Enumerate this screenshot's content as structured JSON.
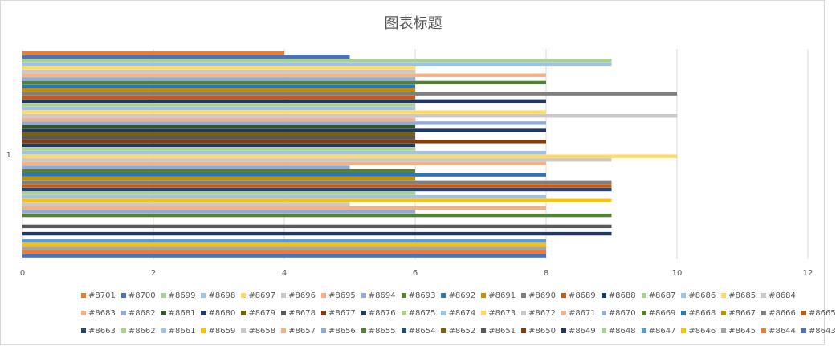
{
  "chart_data": {
    "type": "bar",
    "orientation": "horizontal",
    "title": "图表标题",
    "categories": [
      "1"
    ],
    "xlim": [
      0,
      12
    ],
    "xticks": [
      "0",
      "2",
      "4",
      "6",
      "8",
      "10",
      "12"
    ],
    "grid": true,
    "legend_position": "bottom",
    "series": [
      {
        "name": "#8701",
        "values": [
          4
        ],
        "color": "#ed7d31"
      },
      {
        "name": "#8700",
        "values": [
          5
        ],
        "color": "#4472c4"
      },
      {
        "name": "#8699",
        "values": [
          9
        ],
        "color": "#a9d18e"
      },
      {
        "name": "#8698",
        "values": [
          9
        ],
        "color": "#9dc3e6"
      },
      {
        "name": "#8697",
        "values": [
          6
        ],
        "color": "#ffd966"
      },
      {
        "name": "#8696",
        "values": [
          6
        ],
        "color": "#c9c9c9"
      },
      {
        "name": "#8695",
        "values": [
          8
        ],
        "color": "#f4b183"
      },
      {
        "name": "#8694",
        "values": [
          6
        ],
        "color": "#8faadc"
      },
      {
        "name": "#8693",
        "values": [
          8
        ],
        "color": "#548235"
      },
      {
        "name": "#8692",
        "values": [
          6
        ],
        "color": "#2e75b6"
      },
      {
        "name": "#8691",
        "values": [
          6
        ],
        "color": "#bf9000"
      },
      {
        "name": "#8690",
        "values": [
          10
        ],
        "color": "#7f7f7f"
      },
      {
        "name": "#8689",
        "values": [
          6
        ],
        "color": "#c55a11"
      },
      {
        "name": "#8688",
        "values": [
          8
        ],
        "color": "#203864"
      },
      {
        "name": "#8687",
        "values": [
          6
        ],
        "color": "#a9d18e"
      },
      {
        "name": "#8686",
        "values": [
          6
        ],
        "color": "#9dc3e6"
      },
      {
        "name": "#8685",
        "values": [
          8
        ],
        "color": "#ffd966"
      },
      {
        "name": "#8684",
        "values": [
          10
        ],
        "color": "#c9c9c9"
      },
      {
        "name": "#8683",
        "values": [
          6
        ],
        "color": "#f4b183"
      },
      {
        "name": "#8682",
        "values": [
          8
        ],
        "color": "#8faadc"
      },
      {
        "name": "#8681",
        "values": [
          6
        ],
        "color": "#375623"
      },
      {
        "name": "#8680",
        "values": [
          8
        ],
        "color": "#1f3864"
      },
      {
        "name": "#8679",
        "values": [
          6
        ],
        "color": "#7f6000"
      },
      {
        "name": "#8678",
        "values": [
          6
        ],
        "color": "#595959"
      },
      {
        "name": "#8677",
        "values": [
          8
        ],
        "color": "#843c0c"
      },
      {
        "name": "#8676",
        "values": [
          6
        ],
        "color": "#203864"
      },
      {
        "name": "#8675",
        "values": [
          6
        ],
        "color": "#a9d18e"
      },
      {
        "name": "#8674",
        "values": [
          8
        ],
        "color": "#9dc3e6"
      },
      {
        "name": "#8673",
        "values": [
          10
        ],
        "color": "#ffd966"
      },
      {
        "name": "#8672",
        "values": [
          9
        ],
        "color": "#c9c9c9"
      },
      {
        "name": "#8671",
        "values": [
          8
        ],
        "color": "#f4b183"
      },
      {
        "name": "#8670",
        "values": [
          5
        ],
        "color": "#8faadc"
      },
      {
        "name": "#8669",
        "values": [
          6
        ],
        "color": "#548235"
      },
      {
        "name": "#8668",
        "values": [
          8
        ],
        "color": "#2e75b6"
      },
      {
        "name": "#8667",
        "values": [
          6
        ],
        "color": "#bf9000"
      },
      {
        "name": "#8666",
        "values": [
          9
        ],
        "color": "#7f7f7f"
      },
      {
        "name": "#8665",
        "values": [
          9
        ],
        "color": "#c55a11"
      },
      {
        "name": "#8663",
        "values": [
          9
        ],
        "color": "#264478"
      },
      {
        "name": "#8662",
        "values": [
          6
        ],
        "color": "#a9d18e"
      },
      {
        "name": "#8661",
        "values": [
          8
        ],
        "color": "#9dc3e6"
      },
      {
        "name": "#8659",
        "values": [
          9
        ],
        "color": "#ffc000"
      },
      {
        "name": "#8658",
        "values": [
          5
        ],
        "color": "#c9c9c9"
      },
      {
        "name": "#8657",
        "values": [
          8
        ],
        "color": "#f4b183"
      },
      {
        "name": "#8656",
        "values": [
          6
        ],
        "color": "#8faadc"
      },
      {
        "name": "#8655",
        "values": [
          9
        ],
        "color": "#548235"
      },
      {
        "name": "#8654",
        "values": [
          0
        ],
        "color": "#1f4e79"
      },
      {
        "name": "#8652",
        "values": [
          0
        ],
        "color": "#7f6000"
      },
      {
        "name": "#8651",
        "values": [
          9
        ],
        "color": "#595959"
      },
      {
        "name": "#8650",
        "values": [
          0
        ],
        "color": "#843c0c"
      },
      {
        "name": "#8649",
        "values": [
          9
        ],
        "color": "#203864"
      },
      {
        "name": "#8648",
        "values": [
          0
        ],
        "color": "#a9d18e"
      },
      {
        "name": "#8647",
        "values": [
          8
        ],
        "color": "#5b9bd5"
      },
      {
        "name": "#8646",
        "values": [
          8
        ],
        "color": "#ffc000"
      },
      {
        "name": "#8645",
        "values": [
          8
        ],
        "color": "#a5a5a5"
      },
      {
        "name": "#8644",
        "values": [
          8
        ],
        "color": "#ed7d31"
      },
      {
        "name": "#8643",
        "values": [
          8
        ],
        "color": "#4472c4"
      }
    ]
  }
}
